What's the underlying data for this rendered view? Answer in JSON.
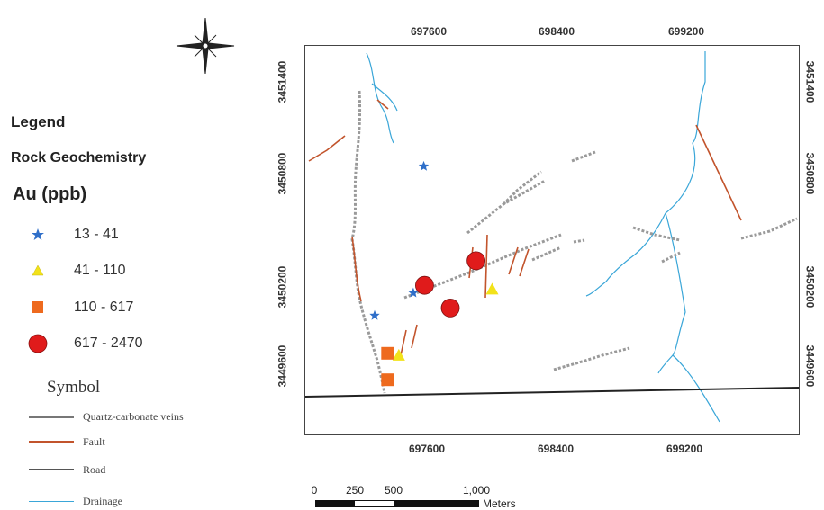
{
  "legend": {
    "title": "Legend",
    "subtitle": "Rock Geochemistry",
    "variable": "Au (ppb)",
    "classes": [
      {
        "label": "13 - 41",
        "symbol": "star-icon",
        "color": "#2f6fc9"
      },
      {
        "label": "41 - 110",
        "symbol": "triangle-icon",
        "color": "#f2e21a"
      },
      {
        "label": "110 - 617",
        "symbol": "square-icon",
        "color": "#ee6a1e"
      },
      {
        "label": "617 - 2470",
        "symbol": "circle-icon",
        "color": "#e01b1b"
      }
    ],
    "symbol_title": "Symbol",
    "line_symbols": [
      {
        "label": "Quartz-carbonate veins",
        "color": "#8a8a8a"
      },
      {
        "label": "Fault",
        "color": "#c2542c"
      },
      {
        "label": "Road",
        "color": "#555555"
      },
      {
        "label": "Drainage",
        "color": "#3aa6d8"
      }
    ]
  },
  "map": {
    "x_ticks": [
      "697600",
      "698400",
      "699200"
    ],
    "y_ticks": [
      "3451400",
      "3450800",
      "3450200",
      "3449600"
    ],
    "scale_bar": {
      "labels": [
        "0",
        "250",
        "500",
        "1,000"
      ],
      "unit": "Meters"
    },
    "samples": [
      {
        "class": 0,
        "easting": 697575,
        "northing": 3450810
      },
      {
        "class": 0,
        "easting": 697510,
        "northing": 3450140
      },
      {
        "class": 0,
        "easting": 697270,
        "northing": 3450020
      },
      {
        "class": 1,
        "easting": 698000,
        "northing": 3450160
      },
      {
        "class": 1,
        "easting": 697420,
        "northing": 3449810
      },
      {
        "class": 2,
        "easting": 697350,
        "northing": 3449820
      },
      {
        "class": 2,
        "easting": 697350,
        "northing": 3449680
      },
      {
        "class": 3,
        "easting": 697580,
        "northing": 3450180
      },
      {
        "class": 3,
        "easting": 697740,
        "northing": 3450060
      },
      {
        "class": 3,
        "easting": 697900,
        "northing": 3450310
      }
    ]
  },
  "colors": {
    "vein": "#9a9a9a",
    "fault": "#c2542c",
    "road": "#222222",
    "drainage": "#3aa6d8",
    "sample_outline": "#7a1010"
  }
}
